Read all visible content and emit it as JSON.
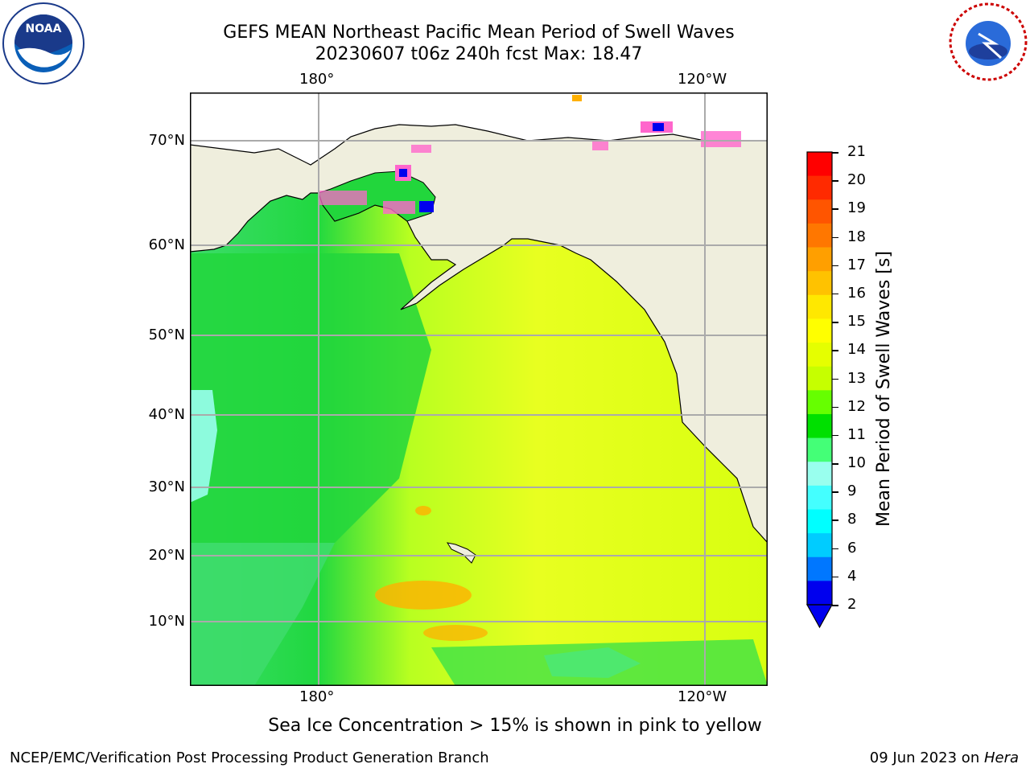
{
  "header": {
    "title_line1": "GEFS MEAN Northeast Pacific Mean Period of Swell Waves",
    "title_line2": "20230607 t06z 240h fcst   Max: 18.47"
  },
  "logos": {
    "left": "NOAA",
    "left_ring": "NATIONAL OCEANIC AND ATMOSPHERIC ADMINISTRATION · U.S. DEPARTMENT OF COMMERCE",
    "right_ring": "NATIONAL WEATHER SERVICE"
  },
  "map": {
    "lon_labels_top": [
      "180°",
      "120°W"
    ],
    "lon_labels_bottom": [
      "180°",
      "120°W"
    ],
    "lat_labels": [
      "70°N",
      "60°N",
      "50°N",
      "40°N",
      "30°N",
      "20°N",
      "10°N"
    ]
  },
  "colorbar": {
    "label": "Mean Period of Swell Waves [s]",
    "ticks": [
      "21",
      "20",
      "19",
      "18",
      "17",
      "16",
      "15",
      "14",
      "13",
      "12",
      "11",
      "10",
      "9",
      "8",
      "6",
      "4",
      "2"
    ],
    "colors": [
      "#ff0000",
      "#ff2a00",
      "#ff5500",
      "#ff7700",
      "#ff9f00",
      "#ffc200",
      "#ffe800",
      "#ffff00",
      "#e5ff00",
      "#c6ff00",
      "#66ff00",
      "#00e000",
      "#44ff77",
      "#99ffee",
      "#44ffff",
      "#00ffff",
      "#00ccff",
      "#0077ff",
      "#0000ee"
    ]
  },
  "subtitle": "Sea Ice Concentration > 15% is shown in pink to yellow",
  "footer": {
    "left": "NCEP/EMC/Verification Post Processing Product Generation Branch",
    "right_date": "09 Jun 2023 on ",
    "right_host": "Hera"
  }
}
